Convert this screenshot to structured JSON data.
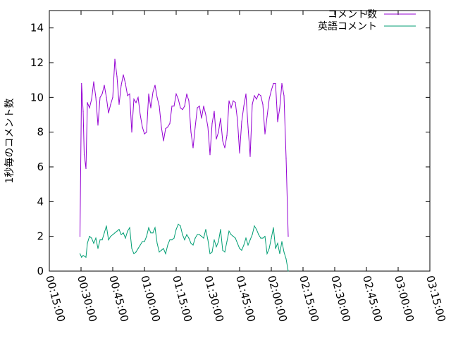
{
  "chart_data": {
    "type": "line",
    "ylabel": "1秒毎のコメント数",
    "xlabel": "",
    "x_axis": {
      "type": "time",
      "min": "00:15:00",
      "max": "03:15:00",
      "ticks": [
        "00:15:00",
        "00:30:00",
        "00:45:00",
        "01:00:00",
        "01:15:00",
        "01:30:00",
        "01:45:00",
        "02:00:00",
        "02:15:00",
        "02:30:00",
        "02:45:00",
        "03:00:00",
        "03:15:00"
      ]
    },
    "y_axis": {
      "min": 0,
      "max": 15,
      "ticks": [
        "0",
        "2",
        "4",
        "6",
        "8",
        "10",
        "12",
        "14"
      ]
    },
    "grid": false,
    "legend_position": "top-right",
    "series": [
      {
        "name": "コメント数",
        "color": "#9400d3",
        "points": [
          [
            "00:29:30",
            2.0
          ],
          [
            "00:30:15",
            10.8
          ],
          [
            "00:31:00",
            9.2
          ],
          [
            "00:31:30",
            6.7
          ],
          [
            "00:32:20",
            5.9
          ],
          [
            "00:33:00",
            9.7
          ],
          [
            "00:34:00",
            9.4
          ],
          [
            "00:35:00",
            9.9
          ],
          [
            "00:36:00",
            10.9
          ],
          [
            "00:37:00",
            10.0
          ],
          [
            "00:38:00",
            8.4
          ],
          [
            "00:39:00",
            10.0
          ],
          [
            "00:40:00",
            10.2
          ],
          [
            "00:41:00",
            10.7
          ],
          [
            "00:42:00",
            10.0
          ],
          [
            "00:43:00",
            9.1
          ],
          [
            "00:44:00",
            9.6
          ],
          [
            "00:45:00",
            10.0
          ],
          [
            "00:46:00",
            12.2
          ],
          [
            "00:47:00",
            11.2
          ],
          [
            "00:48:00",
            9.6
          ],
          [
            "00:49:00",
            10.7
          ],
          [
            "00:50:00",
            11.3
          ],
          [
            "00:51:00",
            10.8
          ],
          [
            "00:52:00",
            10.1
          ],
          [
            "00:53:00",
            10.2
          ],
          [
            "00:54:00",
            8.0
          ],
          [
            "00:55:00",
            9.9
          ],
          [
            "00:56:00",
            9.7
          ],
          [
            "00:57:00",
            10.0
          ],
          [
            "00:58:00",
            9.0
          ],
          [
            "00:59:00",
            8.3
          ],
          [
            "01:00:00",
            7.9
          ],
          [
            "01:01:00",
            8.0
          ],
          [
            "01:02:00",
            10.2
          ],
          [
            "01:03:00",
            9.4
          ],
          [
            "01:04:00",
            10.3
          ],
          [
            "01:05:00",
            10.7
          ],
          [
            "01:06:00",
            10.0
          ],
          [
            "01:07:00",
            9.5
          ],
          [
            "01:08:00",
            8.3
          ],
          [
            "01:09:00",
            7.5
          ],
          [
            "01:10:00",
            8.2
          ],
          [
            "01:11:00",
            8.3
          ],
          [
            "01:12:00",
            8.5
          ],
          [
            "01:13:00",
            9.5
          ],
          [
            "01:14:00",
            9.5
          ],
          [
            "01:15:00",
            10.2
          ],
          [
            "01:16:00",
            9.9
          ],
          [
            "01:17:00",
            9.4
          ],
          [
            "01:18:00",
            9.3
          ],
          [
            "01:19:00",
            9.5
          ],
          [
            "01:20:00",
            10.2
          ],
          [
            "01:21:00",
            9.8
          ],
          [
            "01:22:00",
            8.0
          ],
          [
            "01:23:00",
            7.1
          ],
          [
            "01:24:00",
            8.3
          ],
          [
            "01:25:00",
            9.4
          ],
          [
            "01:26:00",
            9.5
          ],
          [
            "01:27:00",
            8.8
          ],
          [
            "01:28:00",
            9.5
          ],
          [
            "01:29:00",
            9.0
          ],
          [
            "01:30:00",
            8.3
          ],
          [
            "01:31:00",
            6.7
          ],
          [
            "01:32:00",
            8.5
          ],
          [
            "01:33:00",
            9.2
          ],
          [
            "01:34:00",
            7.6
          ],
          [
            "01:35:00",
            8.0
          ],
          [
            "01:36:00",
            8.8
          ],
          [
            "01:37:00",
            7.5
          ],
          [
            "01:38:00",
            7.1
          ],
          [
            "01:39:00",
            7.8
          ],
          [
            "01:40:00",
            9.8
          ],
          [
            "01:41:00",
            9.4
          ],
          [
            "01:42:00",
            9.8
          ],
          [
            "01:43:00",
            9.7
          ],
          [
            "01:44:00",
            8.7
          ],
          [
            "01:45:00",
            6.8
          ],
          [
            "01:46:00",
            8.6
          ],
          [
            "01:47:00",
            9.5
          ],
          [
            "01:48:00",
            10.2
          ],
          [
            "01:49:00",
            8.3
          ],
          [
            "01:50:00",
            6.6
          ],
          [
            "01:51:00",
            9.6
          ],
          [
            "01:52:00",
            10.1
          ],
          [
            "01:53:00",
            9.9
          ],
          [
            "01:54:00",
            10.2
          ],
          [
            "01:55:00",
            10.1
          ],
          [
            "01:56:00",
            9.6
          ],
          [
            "01:57:00",
            7.9
          ],
          [
            "01:58:00",
            8.9
          ],
          [
            "01:59:00",
            9.9
          ],
          [
            "02:00:00",
            10.4
          ],
          [
            "02:01:00",
            10.8
          ],
          [
            "02:02:00",
            10.8
          ],
          [
            "02:03:00",
            8.6
          ],
          [
            "02:04:00",
            9.4
          ],
          [
            "02:05:00",
            10.8
          ],
          [
            "02:06:00",
            10.1
          ],
          [
            "02:07:00",
            6.5
          ],
          [
            "02:08:00",
            2.0
          ]
        ]
      },
      {
        "name": "英語コメント",
        "color": "#009e73",
        "points": [
          [
            "00:29:30",
            1.0
          ],
          [
            "00:30:15",
            0.8
          ],
          [
            "00:31:00",
            0.9
          ],
          [
            "00:32:20",
            0.8
          ],
          [
            "00:33:00",
            1.6
          ],
          [
            "00:34:00",
            2.0
          ],
          [
            "00:35:00",
            1.9
          ],
          [
            "00:36:00",
            1.6
          ],
          [
            "00:37:00",
            1.9
          ],
          [
            "00:38:00",
            1.3
          ],
          [
            "00:39:00",
            1.8
          ],
          [
            "00:40:00",
            1.8
          ],
          [
            "00:41:00",
            2.2
          ],
          [
            "00:42:00",
            2.6
          ],
          [
            "00:43:00",
            1.8
          ],
          [
            "00:44:00",
            2.0
          ],
          [
            "00:45:00",
            2.1
          ],
          [
            "00:46:00",
            2.2
          ],
          [
            "00:47:00",
            2.3
          ],
          [
            "00:48:00",
            2.4
          ],
          [
            "00:49:00",
            2.1
          ],
          [
            "00:50:00",
            2.2
          ],
          [
            "00:51:00",
            1.9
          ],
          [
            "00:52:00",
            2.3
          ],
          [
            "00:53:00",
            2.5
          ],
          [
            "00:54:00",
            1.3
          ],
          [
            "00:55:00",
            1.0
          ],
          [
            "00:56:00",
            1.1
          ],
          [
            "00:57:00",
            1.3
          ],
          [
            "00:58:00",
            1.5
          ],
          [
            "00:59:00",
            1.7
          ],
          [
            "01:00:00",
            1.7
          ],
          [
            "01:01:00",
            2.0
          ],
          [
            "01:02:00",
            2.5
          ],
          [
            "01:03:00",
            2.2
          ],
          [
            "01:04:00",
            2.2
          ],
          [
            "01:05:00",
            2.5
          ],
          [
            "01:06:00",
            1.6
          ],
          [
            "01:07:00",
            1.1
          ],
          [
            "01:08:00",
            1.2
          ],
          [
            "01:09:00",
            1.3
          ],
          [
            "01:10:00",
            1.0
          ],
          [
            "01:11:00",
            1.5
          ],
          [
            "01:12:00",
            1.8
          ],
          [
            "01:13:00",
            1.8
          ],
          [
            "01:14:00",
            1.9
          ],
          [
            "01:15:00",
            2.4
          ],
          [
            "01:16:00",
            2.7
          ],
          [
            "01:17:00",
            2.6
          ],
          [
            "01:18:00",
            2.1
          ],
          [
            "01:19:00",
            1.8
          ],
          [
            "01:20:00",
            2.1
          ],
          [
            "01:21:00",
            1.9
          ],
          [
            "01:22:00",
            1.6
          ],
          [
            "01:23:00",
            1.5
          ],
          [
            "01:24:00",
            1.9
          ],
          [
            "01:25:00",
            2.1
          ],
          [
            "01:26:00",
            2.1
          ],
          [
            "01:27:00",
            2.0
          ],
          [
            "01:28:00",
            1.9
          ],
          [
            "01:29:00",
            2.4
          ],
          [
            "01:30:00",
            1.8
          ],
          [
            "01:31:00",
            1.0
          ],
          [
            "01:32:00",
            1.1
          ],
          [
            "01:33:00",
            1.8
          ],
          [
            "01:34:00",
            1.4
          ],
          [
            "01:35:00",
            1.7
          ],
          [
            "01:36:00",
            2.4
          ],
          [
            "01:37:00",
            1.2
          ],
          [
            "01:38:00",
            1.1
          ],
          [
            "01:39:00",
            1.7
          ],
          [
            "01:40:00",
            2.3
          ],
          [
            "01:41:00",
            2.1
          ],
          [
            "01:42:00",
            2.0
          ],
          [
            "01:43:00",
            1.9
          ],
          [
            "01:44:00",
            1.6
          ],
          [
            "01:45:00",
            1.3
          ],
          [
            "01:46:00",
            1.2
          ],
          [
            "01:47:00",
            1.5
          ],
          [
            "01:48:00",
            1.9
          ],
          [
            "01:49:00",
            1.5
          ],
          [
            "01:50:00",
            1.8
          ],
          [
            "01:51:00",
            2.1
          ],
          [
            "01:52:00",
            2.6
          ],
          [
            "01:53:00",
            2.4
          ],
          [
            "01:54:00",
            2.1
          ],
          [
            "01:55:00",
            1.9
          ],
          [
            "01:56:00",
            1.9
          ],
          [
            "01:57:00",
            2.0
          ],
          [
            "01:58:00",
            1.0
          ],
          [
            "01:59:00",
            1.3
          ],
          [
            "02:00:00",
            1.9
          ],
          [
            "02:01:00",
            2.5
          ],
          [
            "02:02:00",
            1.3
          ],
          [
            "02:03:00",
            1.6
          ],
          [
            "02:04:00",
            1.0
          ],
          [
            "02:05:00",
            1.7
          ],
          [
            "02:06:00",
            1.1
          ],
          [
            "02:07:00",
            0.7
          ],
          [
            "02:08:00",
            0.0
          ]
        ]
      }
    ]
  }
}
